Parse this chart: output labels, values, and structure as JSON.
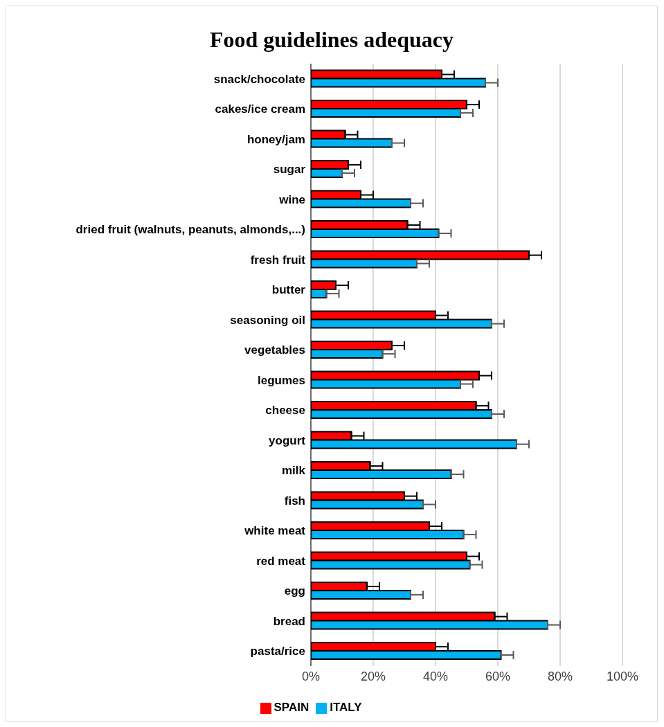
{
  "chart_data": {
    "type": "bar",
    "orientation": "horizontal",
    "title": "Food guidelines adequacy",
    "categories": [
      "snack/chocolate",
      "cakes/ice cream",
      "honey/jam",
      "sugar",
      "wine",
      "dried fruit (walnuts, peanuts, almonds,...)",
      "fresh fruit",
      "butter",
      "seasoning oil",
      "vegetables",
      "legumes",
      "cheese",
      "yogurt",
      "milk",
      "fish",
      "white meat",
      "red meat",
      "egg",
      "bread",
      "pasta/rice"
    ],
    "series": [
      {
        "name": "SPAIN",
        "color": "#ff0000",
        "values": [
          42,
          50,
          11,
          12,
          16,
          31,
          70,
          8,
          40,
          26,
          54,
          53,
          13,
          19,
          30,
          38,
          50,
          18,
          59,
          40
        ],
        "errors": [
          [
            42,
            46
          ],
          [
            50,
            54
          ],
          [
            11,
            15
          ],
          [
            12,
            16
          ],
          [
            16,
            20
          ],
          [
            31,
            35
          ],
          [
            70,
            74
          ],
          [
            8,
            12
          ],
          [
            40,
            44
          ],
          [
            26,
            30
          ],
          [
            54,
            58
          ],
          [
            53,
            57
          ],
          [
            13,
            17
          ],
          [
            19,
            23
          ],
          [
            30,
            34
          ],
          [
            38,
            42
          ],
          [
            50,
            54
          ],
          [
            18,
            22
          ],
          [
            59,
            63
          ],
          [
            40,
            44
          ]
        ]
      },
      {
        "name": "ITALY",
        "color": "#00b0f0",
        "values": [
          56,
          48,
          26,
          10,
          32,
          41,
          34,
          5,
          58,
          23,
          48,
          58,
          66,
          45,
          36,
          49,
          51,
          32,
          76,
          61
        ],
        "errors": [
          [
            56,
            60
          ],
          [
            48,
            52
          ],
          [
            26,
            30
          ],
          [
            10,
            14
          ],
          [
            32,
            36
          ],
          [
            41,
            45
          ],
          [
            34,
            38
          ],
          [
            5,
            9
          ],
          [
            58,
            62
          ],
          [
            23,
            27
          ],
          [
            48,
            52
          ],
          [
            58,
            62
          ],
          [
            66,
            70
          ],
          [
            45,
            49
          ],
          [
            36,
            40
          ],
          [
            49,
            53
          ],
          [
            51,
            55
          ],
          [
            32,
            36
          ],
          [
            76,
            80
          ],
          [
            61,
            65
          ]
        ]
      }
    ],
    "xlim": [
      0,
      100
    ],
    "xticks": [
      {
        "value": 0,
        "label": "0%"
      },
      {
        "value": 20,
        "label": "20%"
      },
      {
        "value": 40,
        "label": "40%"
      },
      {
        "value": 60,
        "label": "60%"
      },
      {
        "value": 80,
        "label": "80%"
      },
      {
        "value": 100,
        "label": "100%"
      }
    ],
    "grid": "x",
    "legend": "bottom"
  }
}
